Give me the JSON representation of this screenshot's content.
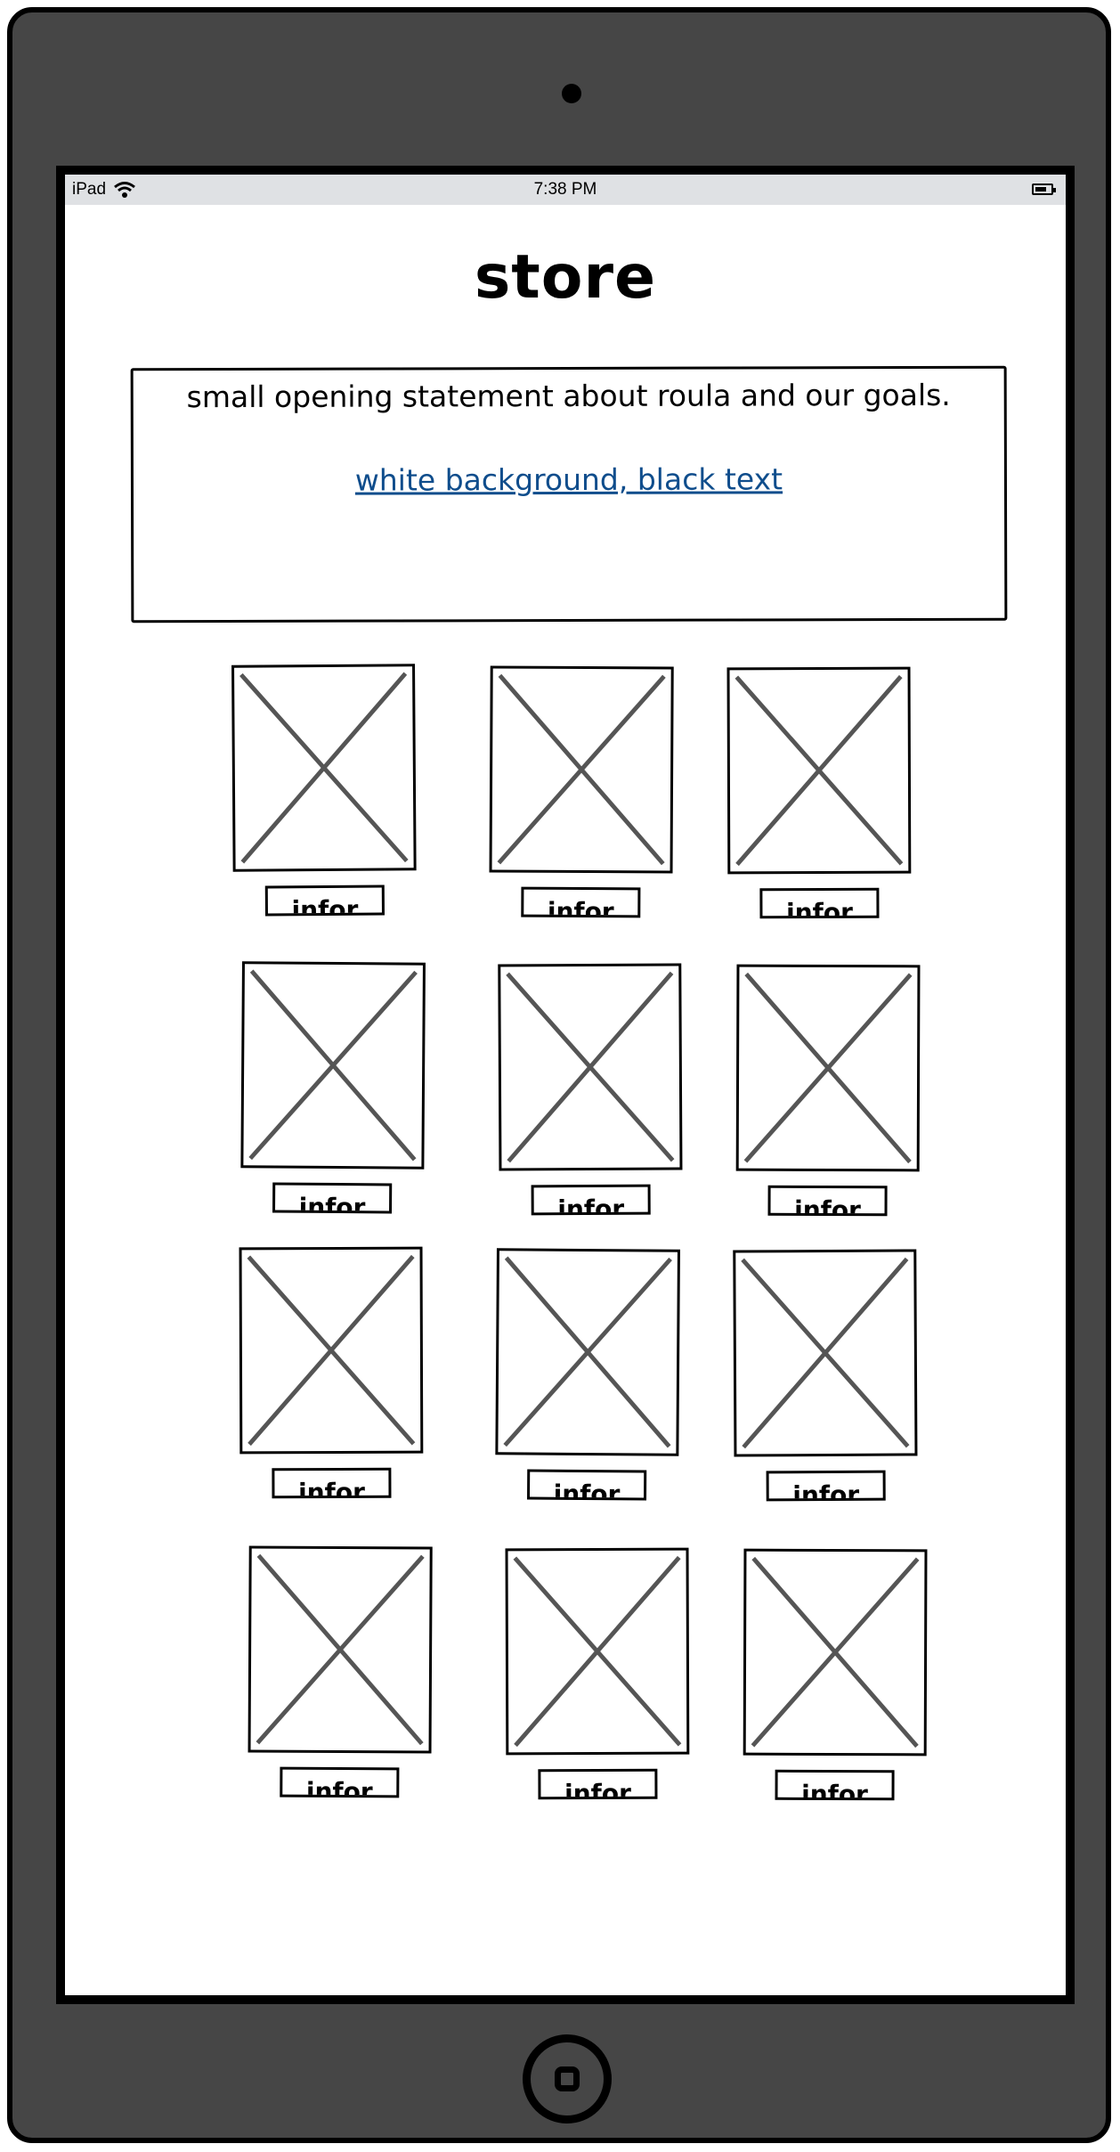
{
  "statusbar": {
    "device": "iPad",
    "time": "7:38 PM",
    "wifi_icon": "wifi-icon",
    "battery_icon": "battery-icon"
  },
  "page": {
    "title": "store"
  },
  "intro": {
    "statement": "small opening statement about roula and our goals.",
    "link": "white background, black text"
  },
  "products": {
    "info_label": "infor",
    "image_icon": "image-placeholder-icon",
    "items": [
      {
        "info": "infor"
      },
      {
        "info": "infor"
      },
      {
        "info": "infor"
      },
      {
        "info": "infor"
      },
      {
        "info": "infor"
      },
      {
        "info": "infor"
      },
      {
        "info": "infor"
      },
      {
        "info": "infor"
      },
      {
        "info": "infor"
      },
      {
        "info": "infor"
      },
      {
        "info": "infor"
      },
      {
        "info": "infor"
      }
    ]
  },
  "colors": {
    "device_body": "#464646",
    "status_bar": "#dfe1e4",
    "link": "#0f4d8c",
    "placeholder_cross": "#555555"
  }
}
